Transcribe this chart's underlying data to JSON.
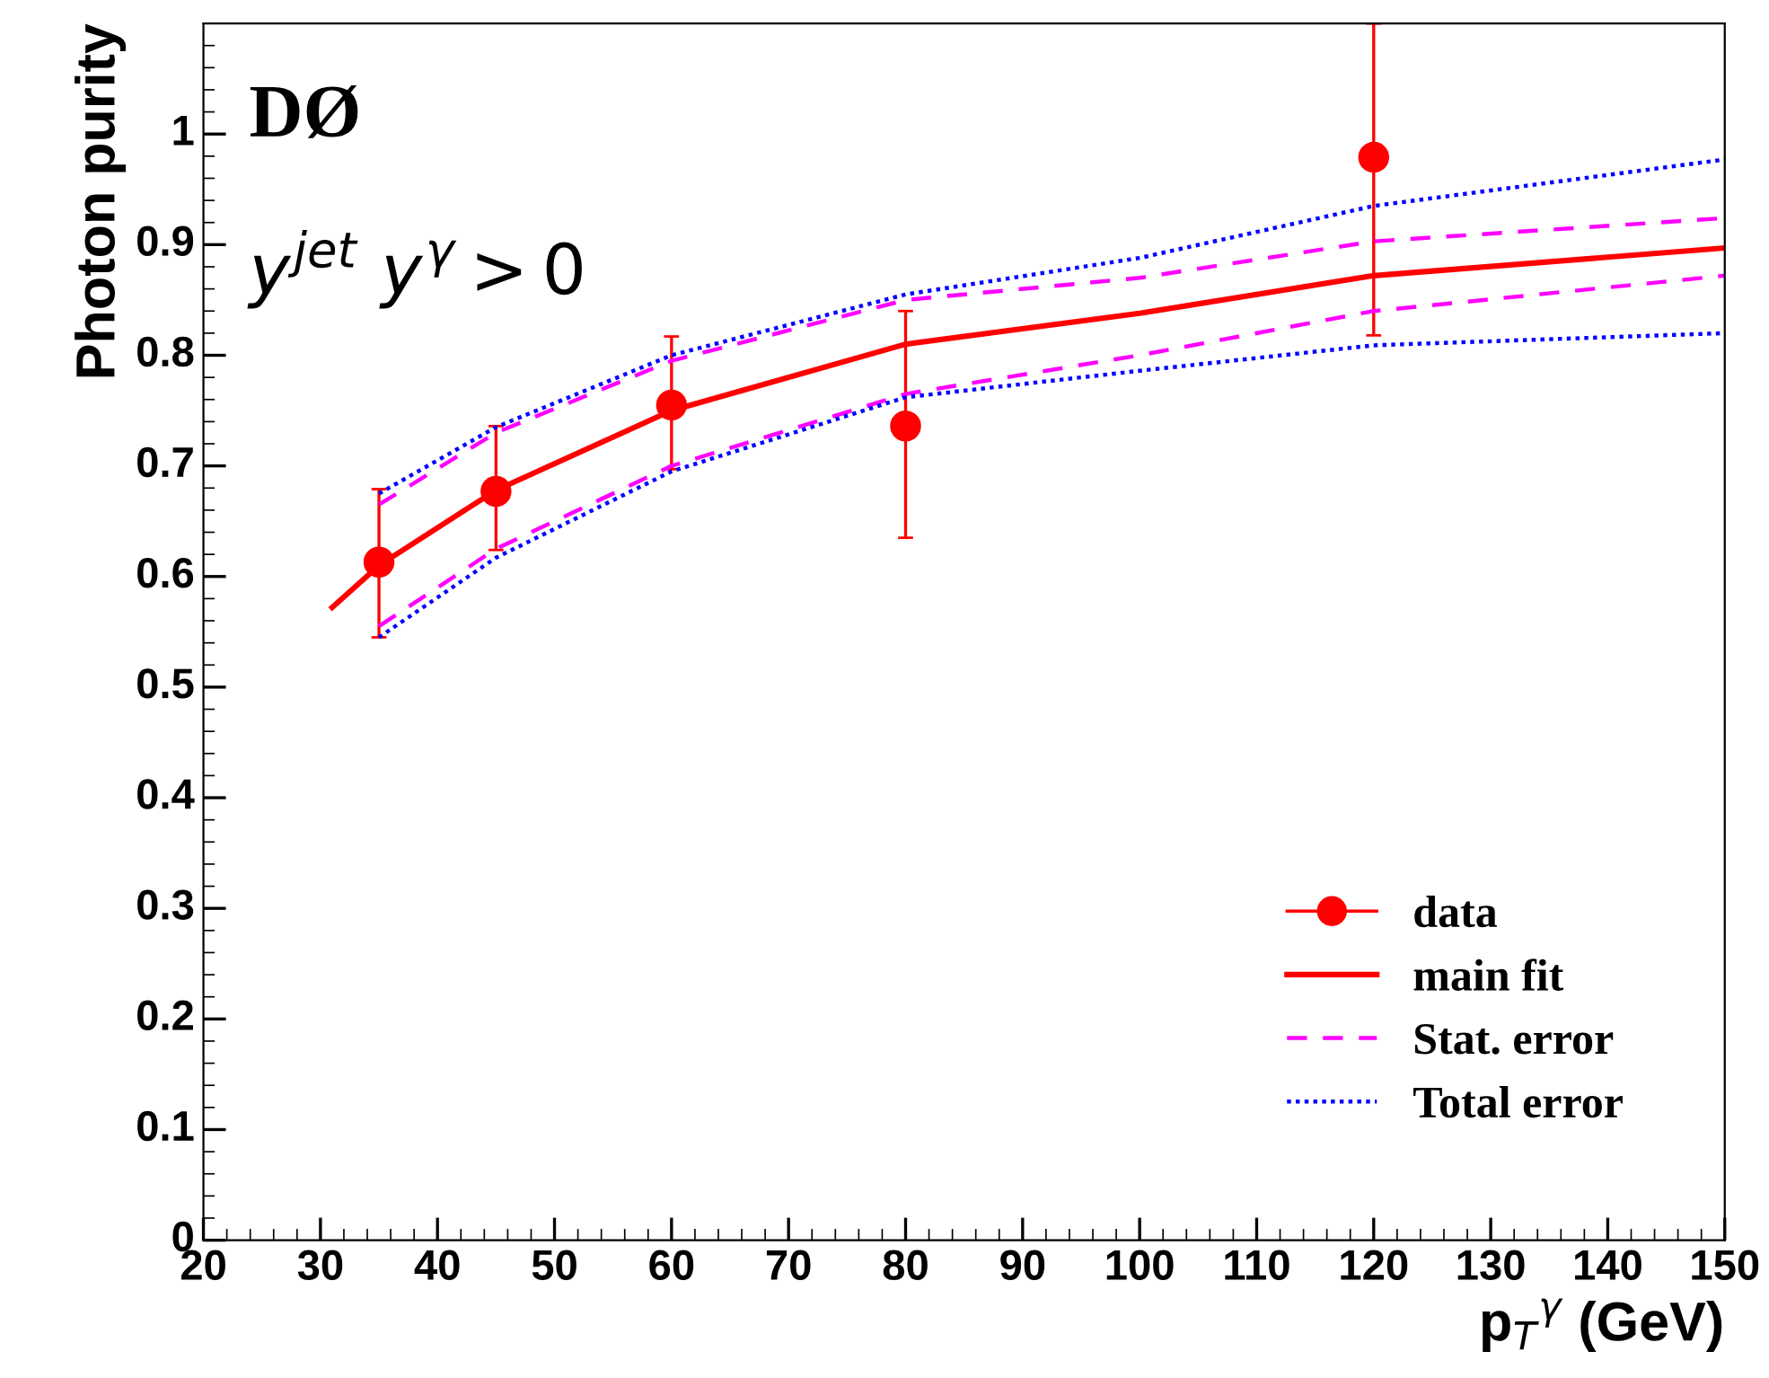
{
  "chart_data": {
    "type": "line",
    "xlabel": "p$_{T}$$^{γ}$ (GeV)",
    "ylabel": "Photon purity",
    "annotations": [
      "DØ",
      "y$^{jet}$ y$^{γ}$>0"
    ],
    "xlim": [
      20,
      150
    ],
    "ylim": [
      0,
      1.1
    ],
    "xticks": [
      20,
      30,
      40,
      50,
      60,
      70,
      80,
      90,
      100,
      110,
      120,
      130,
      140,
      150
    ],
    "yticks": [
      0,
      0.1,
      0.2,
      0.3,
      0.4,
      0.5,
      0.6,
      0.7,
      0.8,
      0.9,
      1
    ],
    "grid": false,
    "legend": "bottom right",
    "series": [
      {
        "name": "data",
        "type": "scatter",
        "color": "#ff0000",
        "marker": "circle",
        "x": [
          35,
          45,
          60,
          80,
          120
        ],
        "values": [
          0.613,
          0.677,
          0.755,
          0.736,
          0.979
        ],
        "errors": [
          [
            0.545,
            0.679
          ],
          [
            0.624,
            0.736
          ],
          [
            0.697,
            0.817
          ],
          [
            0.635,
            0.84
          ],
          [
            0.818,
            1.1
          ]
        ]
      },
      {
        "name": "main fit",
        "color": "#ff0000",
        "line_style": "solid",
        "x": [
          31,
          35,
          45,
          60,
          80,
          100,
          120,
          150
        ],
        "values": [
          0.572,
          0.61,
          0.678,
          0.75,
          0.81,
          0.838,
          0.872,
          0.897
        ]
      },
      {
        "name": "Stat. error",
        "color": "#ff00ff",
        "line_style": "dashed",
        "x": [
          35,
          45,
          60,
          80,
          100,
          120,
          150
        ],
        "values": [
          0.665,
          0.73,
          0.795,
          0.85,
          0.87,
          0.903,
          0.924
        ]
      },
      {
        "color": "#ff00ff",
        "line_style": "dashed",
        "x": [
          35,
          45,
          60,
          80,
          100,
          120,
          150
        ],
        "values": [
          0.555,
          0.625,
          0.7,
          0.765,
          0.8,
          0.84,
          0.872
        ]
      },
      {
        "name": "Total error",
        "color": "#0000ff",
        "line_style": "dotted",
        "x": [
          35,
          45,
          60,
          80,
          100,
          120,
          150
        ],
        "values": [
          0.675,
          0.735,
          0.8,
          0.855,
          0.888,
          0.935,
          0.977
        ]
      },
      {
        "color": "#0000ff",
        "line_style": "dotted",
        "x": [
          35,
          45,
          60,
          80,
          100,
          120,
          150
        ],
        "values": [
          0.545,
          0.617,
          0.695,
          0.762,
          0.786,
          0.809,
          0.82
        ]
      }
    ]
  }
}
